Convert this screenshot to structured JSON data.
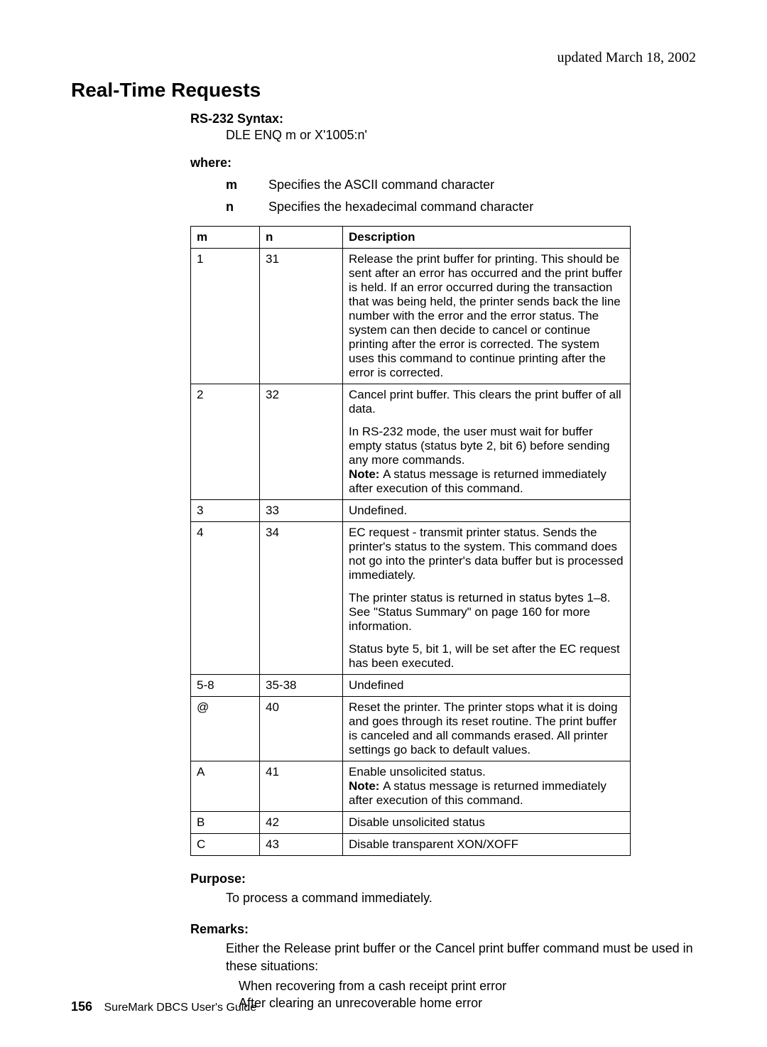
{
  "header": {
    "updated": "updated March 18, 2002"
  },
  "title": "Real-Time Requests",
  "syntax": {
    "label": "RS-232 Syntax:",
    "value": "DLE ENQ m or X'1005:n'"
  },
  "where": {
    "label": "where:",
    "params": [
      {
        "key": "m",
        "desc": "Specifies the ASCII command character"
      },
      {
        "key": "n",
        "desc": "Specifies the hexadecimal command character"
      }
    ]
  },
  "table": {
    "headers": {
      "m": "m",
      "n": "n",
      "desc": "Description"
    },
    "rows": [
      {
        "m": "1",
        "n": "31",
        "paras": [
          "Release the print buffer for printing. This should be sent after an error has occurred and the print buffer is held. If an error occurred during the transaction that was being held, the printer sends back the line number with the error and the error status. The system can then decide to cancel or continue printing after the error is corrected. The system uses this command to continue printing after the error is corrected."
        ],
        "note": null
      },
      {
        "m": "2",
        "n": "32",
        "paras": [
          "Cancel print buffer. This clears the print buffer of all data.",
          "In RS-232 mode, the user must wait for buffer empty status (status byte 2, bit 6) before sending any more commands."
        ],
        "note": "A status message is returned immediately after execution of this command."
      },
      {
        "m": "3",
        "n": "33",
        "paras": [
          "Undefined."
        ],
        "note": null
      },
      {
        "m": "4",
        "n": "34",
        "paras": [
          "EC request - transmit printer status. Sends the printer's status to the system. This command does not go into the printer's data buffer but is processed immediately.",
          "The printer status is returned in status bytes 1–8. See \"Status Summary\" on page 160 for more information.",
          "Status byte 5, bit 1, will be set after the EC request has been executed."
        ],
        "note": null
      },
      {
        "m": "5-8",
        "n": "35-38",
        "paras": [
          "Undefined"
        ],
        "note": null
      },
      {
        "m": "@",
        "n": "40",
        "paras": [
          "Reset the printer. The printer stops what it is doing and goes through its reset routine. The print buffer is canceled and all commands erased. All printer settings go back to default values."
        ],
        "note": null
      },
      {
        "m": "A",
        "n": "41",
        "paras": [
          "Enable unsolicited status."
        ],
        "note": "A status message is returned immediately after execution of this command."
      },
      {
        "m": "B",
        "n": "42",
        "paras": [
          "Disable unsolicited status"
        ],
        "note": null
      },
      {
        "m": "C",
        "n": "43",
        "paras": [
          "Disable transparent XON/XOFF"
        ],
        "note": null
      }
    ]
  },
  "purpose": {
    "label": "Purpose:",
    "text": "To process a command immediately."
  },
  "remarks": {
    "label": "Remarks:",
    "text": "Either the Release print buffer or the Cancel print buffer command must be used in these situations:",
    "items": [
      "When recovering from a cash receipt print error",
      "After clearing an unrecoverable home error"
    ]
  },
  "footer": {
    "page": "156",
    "doc": "SureMark DBCS User's Guide"
  },
  "note_label": "Note:"
}
